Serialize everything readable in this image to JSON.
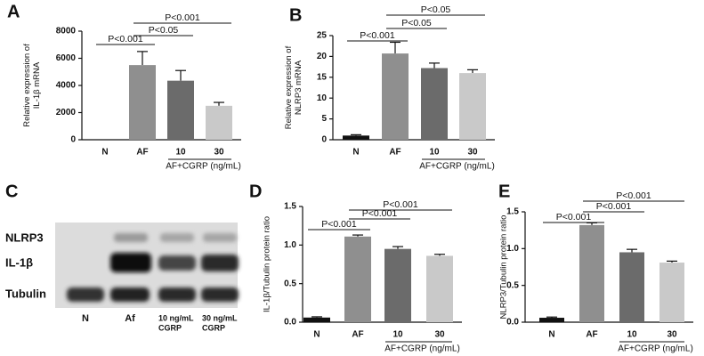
{
  "chart_data": [
    {
      "type": "bar",
      "panel": "A",
      "ylabel": [
        "Relative expression of",
        "IL-1β mRNA"
      ],
      "categories": [
        "N",
        "AF",
        "10",
        "30"
      ],
      "values": [
        0,
        5500,
        4350,
        2500
      ],
      "errors": [
        null,
        1000,
        750,
        250
      ],
      "colors": [
        "#111111",
        "#8f8f8f",
        "#6b6b6b",
        "#c9c9c9"
      ],
      "ylim": [
        0,
        8000
      ],
      "yticks": [
        0,
        2000,
        4000,
        6000,
        8000
      ],
      "brackets": [
        {
          "text": "P<0.001",
          "from": 0,
          "to": 1
        },
        {
          "text": "P<0.05",
          "from": 1,
          "to": 2
        },
        {
          "text": "P<0.001",
          "from": 1,
          "to": 3
        }
      ],
      "group_label": "AF+CGRP (ng/mL)"
    },
    {
      "type": "bar",
      "panel": "B",
      "ylabel": [
        "Relative expression of",
        "NLRP3 mRNA"
      ],
      "categories": [
        "N",
        "AF",
        "10",
        "30"
      ],
      "values": [
        1,
        20.7,
        17.2,
        16
      ],
      "errors": [
        0.2,
        2.7,
        1.2,
        0.8
      ],
      "colors": [
        "#111111",
        "#8f8f8f",
        "#6b6b6b",
        "#c9c9c9"
      ],
      "ylim": [
        0,
        25
      ],
      "yticks": [
        0,
        5,
        10,
        15,
        20,
        25
      ],
      "brackets": [
        {
          "text": "P<0.001",
          "from": 0,
          "to": 1
        },
        {
          "text": "P<0.05",
          "from": 1,
          "to": 2
        },
        {
          "text": "P<0.05",
          "from": 1,
          "to": 3
        }
      ],
      "group_label": "AF+CGRP (ng/mL)"
    },
    {
      "type": "bar",
      "panel": "D",
      "ylabel": [
        "IL-1β/Tubulin protein ratio"
      ],
      "categories": [
        "N",
        "AF",
        "10",
        "30"
      ],
      "values": [
        0.06,
        1.11,
        0.95,
        0.86
      ],
      "errors": [
        0.01,
        0.02,
        0.03,
        0.02
      ],
      "colors": [
        "#111111",
        "#8f8f8f",
        "#6b6b6b",
        "#c9c9c9"
      ],
      "ylim": [
        0,
        1.5
      ],
      "yticks": [
        {
          "value": 0,
          "label": "0.0"
        },
        0.5,
        {
          "value": 1,
          "label": "1.0"
        },
        1.5
      ],
      "brackets": [
        {
          "text": "P<0.001",
          "from": 0,
          "to": 1
        },
        {
          "text": "P<0.001",
          "from": 1,
          "to": 2
        },
        {
          "text": "P<0.001",
          "from": 1,
          "to": 3
        }
      ],
      "group_label": "AF+CGRP (ng/mL)"
    },
    {
      "type": "bar",
      "panel": "E",
      "ylabel": [
        "NLRP3/Tubulin protein ratio"
      ],
      "categories": [
        "N",
        "AF",
        "10",
        "30"
      ],
      "values": [
        0.06,
        1.32,
        0.95,
        0.81
      ],
      "errors": [
        0.01,
        0.03,
        0.04,
        0.02
      ],
      "colors": [
        "#111111",
        "#8f8f8f",
        "#6b6b6b",
        "#c9c9c9"
      ],
      "ylim": [
        0,
        1.5
      ],
      "yticks": [
        {
          "value": 0,
          "label": "0.0"
        },
        0.5,
        {
          "value": 1,
          "label": "1.0"
        },
        1.5
      ],
      "brackets": [
        {
          "text": "P<0.001",
          "from": 0,
          "to": 1
        },
        {
          "text": "P<0.001",
          "from": 1,
          "to": 2
        },
        {
          "text": "P<0.001",
          "from": 1,
          "to": 3
        }
      ],
      "group_label": "AF+CGRP (ng/mL)"
    }
  ],
  "blot": {
    "panel": "C",
    "rows": [
      "NLRP3",
      "IL-1β",
      "Tubulin"
    ],
    "lanes": [
      [
        "N"
      ],
      [
        "Af"
      ],
      [
        "10 ng/mL",
        "CGRP"
      ],
      [
        "30 ng/mL",
        "CGRP"
      ]
    ]
  }
}
